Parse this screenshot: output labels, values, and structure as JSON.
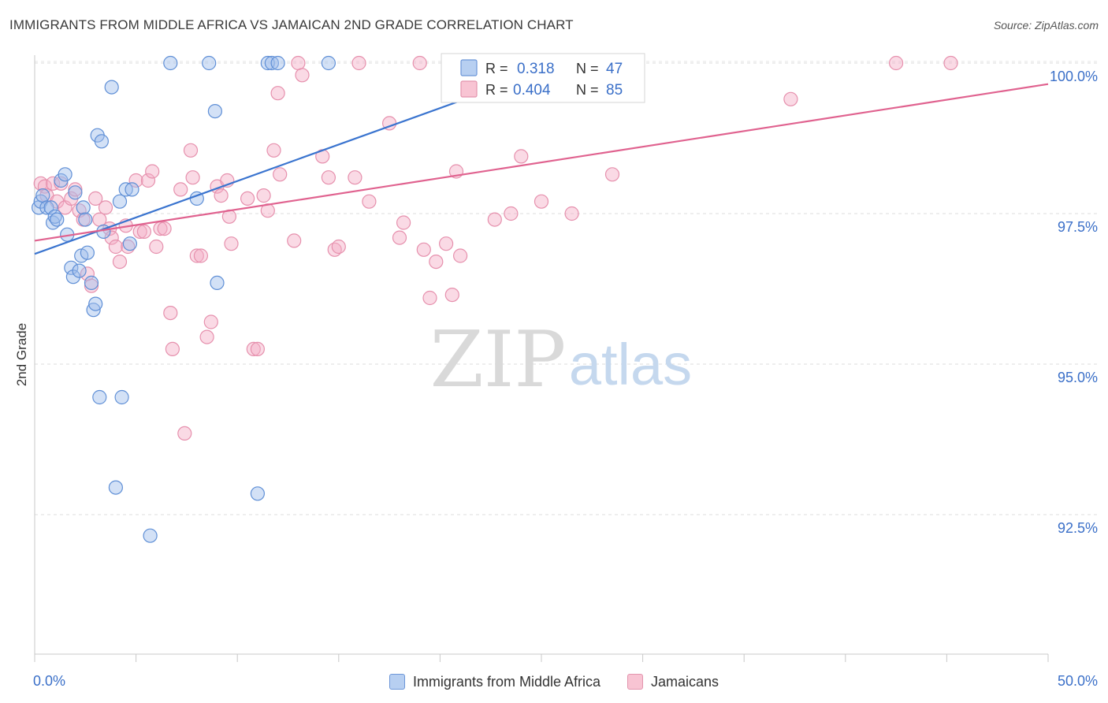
{
  "header": {
    "title": "IMMIGRANTS FROM MIDDLE AFRICA VS JAMAICAN 2ND GRADE CORRELATION CHART",
    "source": "Source: ZipAtlas.com"
  },
  "watermark": {
    "zip": "ZIP",
    "atlas": "atlas"
  },
  "colors": {
    "blue": "#3a74cf",
    "blue_fill": "#9dbdeb",
    "pink": "#e0628f",
    "pink_fill": "#f5aec5",
    "axis_text": "#3a6fc8"
  },
  "stats": {
    "r_label": "R =",
    "n_label": "N =",
    "rows": [
      {
        "r": "0.318",
        "n": "47"
      },
      {
        "r": "0.404",
        "n": "85"
      }
    ]
  },
  "legend": {
    "items": [
      {
        "label": "Immigrants from Middle Africa"
      },
      {
        "label": "Jamaicans"
      }
    ]
  },
  "chart_data": {
    "type": "scatter",
    "title": "IMMIGRANTS FROM MIDDLE AFRICA VS JAMAICAN 2ND GRADE CORRELATION CHART",
    "xlabel": "",
    "ylabel": "2nd Grade",
    "xlim": [
      0,
      50
    ],
    "ylim": [
      90.2,
      100.45
    ],
    "x_tick_labels": [
      "0.0%",
      "50.0%"
    ],
    "y_ticks": [
      92.5,
      95.0,
      97.5,
      100.0
    ],
    "y_tick_labels": [
      "92.5%",
      "95.0%",
      "97.5%",
      "100.0%"
    ],
    "grid": "horizontal dashed",
    "legend_position": "bottom-center",
    "series": [
      {
        "name": "Immigrants from Middle Africa",
        "r": 0.318,
        "n": 47,
        "trend": {
          "x": [
            0.0,
            27.0
          ],
          "y": [
            96.83,
            100.1
          ]
        },
        "points": [
          [
            0.2,
            97.6
          ],
          [
            0.3,
            97.7
          ],
          [
            0.4,
            97.8
          ],
          [
            0.6,
            97.6
          ],
          [
            0.8,
            97.6
          ],
          [
            0.9,
            97.35
          ],
          [
            1.0,
            97.45
          ],
          [
            1.1,
            97.4
          ],
          [
            1.3,
            98.05
          ],
          [
            1.5,
            98.15
          ],
          [
            1.6,
            97.15
          ],
          [
            1.8,
            96.6
          ],
          [
            1.9,
            96.45
          ],
          [
            2.0,
            97.85
          ],
          [
            2.2,
            96.55
          ],
          [
            2.3,
            96.8
          ],
          [
            2.4,
            97.6
          ],
          [
            2.5,
            97.4
          ],
          [
            2.6,
            96.85
          ],
          [
            2.8,
            96.35
          ],
          [
            2.9,
            95.9
          ],
          [
            3.0,
            96.0
          ],
          [
            3.1,
            98.8
          ],
          [
            3.3,
            98.7
          ],
          [
            3.2,
            94.45
          ],
          [
            3.4,
            97.2
          ],
          [
            3.8,
            99.6
          ],
          [
            4.0,
            92.95
          ],
          [
            4.2,
            97.7
          ],
          [
            4.3,
            94.45
          ],
          [
            4.5,
            97.9
          ],
          [
            4.7,
            97.0
          ],
          [
            4.8,
            97.9
          ],
          [
            5.7,
            92.15
          ],
          [
            6.7,
            100.0
          ],
          [
            8.0,
            97.75
          ],
          [
            8.6,
            100.0
          ],
          [
            8.9,
            99.2
          ],
          [
            9.0,
            96.35
          ],
          [
            11.0,
            92.85
          ],
          [
            11.5,
            100.0
          ],
          [
            11.7,
            100.0
          ],
          [
            12.0,
            100.0
          ],
          [
            14.5,
            100.0
          ],
          [
            22.0,
            100.0
          ],
          [
            25.3,
            100.0
          ],
          [
            26.8,
            100.0
          ]
        ]
      },
      {
        "name": "Jamaicans",
        "r": 0.404,
        "n": 85,
        "trend": {
          "x": [
            0.0,
            50.0
          ],
          "y": [
            97.05,
            99.65
          ]
        },
        "points": [
          [
            0.3,
            98.0
          ],
          [
            0.5,
            97.95
          ],
          [
            0.6,
            97.8
          ],
          [
            0.9,
            98.0
          ],
          [
            1.1,
            97.7
          ],
          [
            1.3,
            98.0
          ],
          [
            1.5,
            97.6
          ],
          [
            1.8,
            97.75
          ],
          [
            2.0,
            97.9
          ],
          [
            2.2,
            97.55
          ],
          [
            2.4,
            97.4
          ],
          [
            2.6,
            96.5
          ],
          [
            2.8,
            96.3
          ],
          [
            3.0,
            97.75
          ],
          [
            3.2,
            97.4
          ],
          [
            3.5,
            97.6
          ],
          [
            3.7,
            97.25
          ],
          [
            3.8,
            97.1
          ],
          [
            4.0,
            96.95
          ],
          [
            4.2,
            96.7
          ],
          [
            4.5,
            97.3
          ],
          [
            4.6,
            96.95
          ],
          [
            5.0,
            98.05
          ],
          [
            5.2,
            97.2
          ],
          [
            5.4,
            97.2
          ],
          [
            5.6,
            98.05
          ],
          [
            5.8,
            98.2
          ],
          [
            6.0,
            96.95
          ],
          [
            6.2,
            97.25
          ],
          [
            6.4,
            97.25
          ],
          [
            6.7,
            95.85
          ],
          [
            6.8,
            95.25
          ],
          [
            7.2,
            97.9
          ],
          [
            7.4,
            93.85
          ],
          [
            7.7,
            98.55
          ],
          [
            7.8,
            98.1
          ],
          [
            8.0,
            96.8
          ],
          [
            8.2,
            96.8
          ],
          [
            8.5,
            95.45
          ],
          [
            8.7,
            95.7
          ],
          [
            9.0,
            97.95
          ],
          [
            9.2,
            97.8
          ],
          [
            9.5,
            98.05
          ],
          [
            9.6,
            97.45
          ],
          [
            9.7,
            97.0
          ],
          [
            10.5,
            97.75
          ],
          [
            10.8,
            95.25
          ],
          [
            11.0,
            95.25
          ],
          [
            11.3,
            97.8
          ],
          [
            11.5,
            97.55
          ],
          [
            11.8,
            98.55
          ],
          [
            12.0,
            99.5
          ],
          [
            12.1,
            98.15
          ],
          [
            12.8,
            97.05
          ],
          [
            13.0,
            100.0
          ],
          [
            13.2,
            99.8
          ],
          [
            14.2,
            98.45
          ],
          [
            14.5,
            98.1
          ],
          [
            14.8,
            96.9
          ],
          [
            15.0,
            96.95
          ],
          [
            15.8,
            98.1
          ],
          [
            16.0,
            100.0
          ],
          [
            16.5,
            97.7
          ],
          [
            17.5,
            99.0
          ],
          [
            18.0,
            97.1
          ],
          [
            18.2,
            97.35
          ],
          [
            19.0,
            100.0
          ],
          [
            19.2,
            96.9
          ],
          [
            19.5,
            96.1
          ],
          [
            19.8,
            96.7
          ],
          [
            20.3,
            97.0
          ],
          [
            20.6,
            96.15
          ],
          [
            20.8,
            98.2
          ],
          [
            21.0,
            96.8
          ],
          [
            22.7,
            97.4
          ],
          [
            23.5,
            97.5
          ],
          [
            24.0,
            98.45
          ],
          [
            25.0,
            97.7
          ],
          [
            26.5,
            97.5
          ],
          [
            27.0,
            100.0
          ],
          [
            28.0,
            100.0
          ],
          [
            28.5,
            98.15
          ],
          [
            37.3,
            99.4
          ],
          [
            42.5,
            100.0
          ],
          [
            45.2,
            100.0
          ]
        ]
      }
    ]
  }
}
